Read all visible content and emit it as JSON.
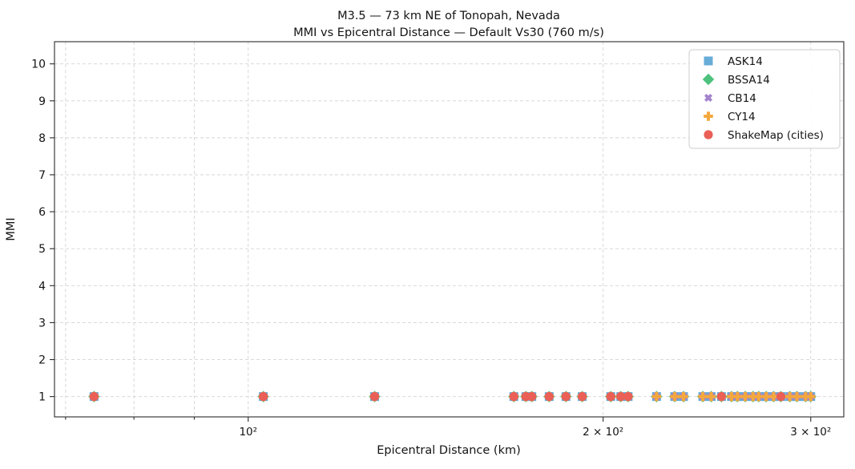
{
  "chart_data": {
    "type": "scatter",
    "title": "M3.5 — 73 km NE of Tonopah, Nevada",
    "subtitle": "MMI vs Epicentral Distance — Default Vs30 (760 m/s)",
    "xlabel": "Epicentral Distance (km)",
    "ylabel": "MMI",
    "x_scale": "log",
    "xlim": [
      68.5,
      320
    ],
    "ylim": [
      0.45,
      10.6
    ],
    "yticks": [
      1,
      2,
      3,
      4,
      5,
      6,
      7,
      8,
      9,
      10
    ],
    "xticks_major": [
      {
        "value": 100,
        "label": "10²"
      },
      {
        "value": 200,
        "label": "2 × 10²"
      },
      {
        "value": 300,
        "label": "3 × 10²"
      }
    ],
    "xticks_minor": [
      70,
      80,
      90
    ],
    "grid": true,
    "grid_style": "dashed",
    "legend_position": "upper right",
    "series": [
      {
        "name": "ASK14",
        "marker": "square",
        "color": "#68acd8",
        "y": 1,
        "x": [
          74,
          103,
          128,
          168,
          172,
          174,
          180,
          186,
          192,
          203,
          207,
          210,
          222,
          230,
          234,
          243,
          247,
          252,
          257,
          260,
          264,
          268,
          271,
          275,
          279,
          283,
          288,
          292,
          297,
          300
        ]
      },
      {
        "name": "BSSA14",
        "marker": "diamond",
        "color": "#4cc27d",
        "y": 1,
        "x": [
          74,
          103,
          128,
          168,
          172,
          174,
          180,
          186,
          192,
          203,
          207,
          210,
          222,
          230,
          234,
          243,
          247,
          252,
          257,
          260,
          264,
          268,
          271,
          275,
          279,
          283,
          288,
          292,
          297,
          300
        ]
      },
      {
        "name": "CB14",
        "marker": "x",
        "color": "#a382cd",
        "y": 1,
        "x": [
          74,
          103,
          128,
          168,
          172,
          174,
          180,
          186,
          192,
          203,
          207,
          210,
          222,
          230,
          234,
          243,
          247,
          252,
          257,
          260,
          264,
          268,
          271,
          275,
          279,
          283,
          288,
          292,
          297,
          300
        ]
      },
      {
        "name": "CY14",
        "marker": "plus",
        "color": "#f3a83e",
        "y": 1,
        "x": [
          74,
          103,
          128,
          168,
          172,
          174,
          180,
          186,
          192,
          203,
          207,
          210,
          222,
          230,
          234,
          243,
          247,
          252,
          257,
          260,
          264,
          268,
          271,
          275,
          279,
          283,
          288,
          292,
          297,
          300
        ]
      },
      {
        "name": "ShakeMap (cities)",
        "marker": "circle",
        "color": "#ea5f56",
        "y": 1,
        "x": [
          74,
          103,
          128,
          168,
          172,
          174,
          180,
          186,
          192,
          203,
          207,
          210,
          252,
          283
        ]
      }
    ]
  },
  "colors": {
    "grid": "#d4d4d4",
    "spine": "#2b2b2b",
    "legend_border": "#cccccc",
    "legend_bg": "#ffffff"
  }
}
